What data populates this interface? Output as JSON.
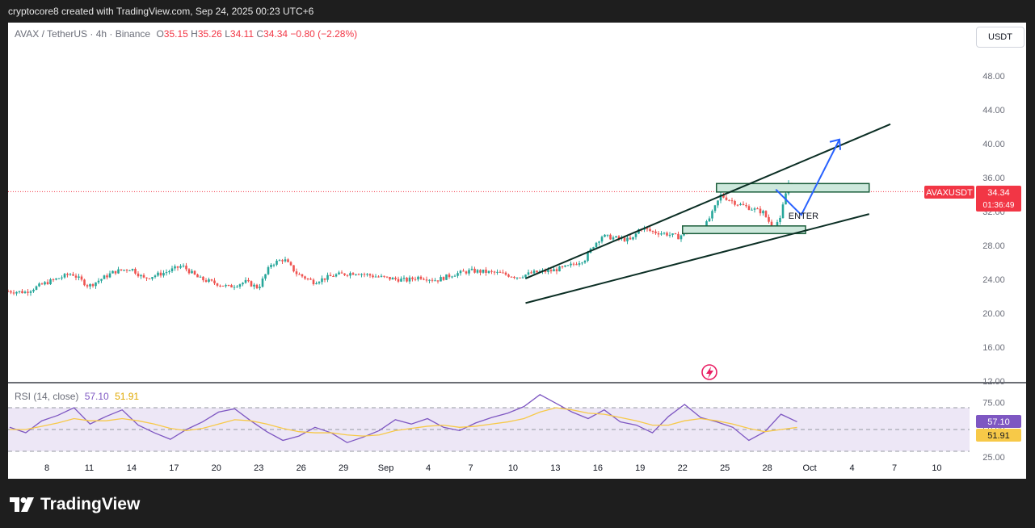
{
  "header": {
    "attribution": "cryptocore8 created with TradingView.com, Sep 24, 2025 00:23 UTC+6"
  },
  "legend": {
    "symbol": "AVAX / TetherUS · 4h · Binance",
    "open_label": "O",
    "open": "35.15",
    "high_label": "H",
    "high": "35.26",
    "low_label": "L",
    "low": "34.11",
    "close_label": "C",
    "close": "34.34",
    "change": "−0.80 (−2.28%)"
  },
  "currency_button": "USDT",
  "price_tag": {
    "symbol": "AVAXUSDT",
    "price": "34.34",
    "countdown": "01:36:49"
  },
  "annotation": {
    "enter": "ENTER"
  },
  "rsi": {
    "title": "RSI (14, close)",
    "value": "57.10",
    "ma": "51.91"
  },
  "branding": {
    "wordmark": "TradingView"
  },
  "colors": {
    "up": "#26a69a",
    "down": "#ef5350",
    "rsi_line": "#7e57c2",
    "rsi_ma": "#f7c948",
    "price_tag": "#f23645",
    "arrow": "#2962ff",
    "zone_fill": "#cde8dc",
    "zone_border": "#1b5e3b",
    "trendline": "#0b2e24"
  },
  "chart_data": [
    {
      "type": "candlestick",
      "title": "AVAX / TetherUS · 4h · Binance",
      "ylabel": "USDT",
      "ylim": [
        12,
        50
      ],
      "y_ticks": [
        "48.00",
        "44.00",
        "40.00",
        "36.00",
        "32.00",
        "28.00",
        "24.00",
        "20.00",
        "16.00",
        "12.00"
      ],
      "x_ticks": [
        "8",
        "11",
        "14",
        "17",
        "20",
        "23",
        "26",
        "29",
        "Sep",
        "4",
        "7",
        "10",
        "13",
        "16",
        "19",
        "22",
        "25",
        "28",
        "Oct",
        "4",
        "7",
        "10"
      ],
      "close_path": [
        [
          0,
          22.6
        ],
        [
          4,
          22.5
        ],
        [
          9,
          23.6
        ],
        [
          15,
          24.7
        ],
        [
          19,
          23.2
        ],
        [
          25,
          24.9
        ],
        [
          29,
          25.3
        ],
        [
          32,
          24.1
        ],
        [
          37,
          24.8
        ],
        [
          41,
          25.6
        ],
        [
          45,
          24.1
        ],
        [
          52,
          23.1
        ],
        [
          56,
          23.7
        ],
        [
          59,
          23.0
        ],
        [
          62,
          25.8
        ],
        [
          65,
          26.4
        ],
        [
          68,
          24.7
        ],
        [
          72,
          23.7
        ],
        [
          77,
          24.5
        ],
        [
          82,
          24.8
        ],
        [
          86,
          24.4
        ],
        [
          90,
          24.1
        ],
        [
          94,
          23.9
        ],
        [
          97,
          24.3
        ],
        [
          101,
          23.9
        ],
        [
          105,
          24.6
        ],
        [
          109,
          25.0
        ],
        [
          112,
          24.9
        ],
        [
          116,
          24.7
        ],
        [
          120,
          24.3
        ],
        [
          124,
          24.8
        ],
        [
          128,
          25.0
        ],
        [
          132,
          25.5
        ],
        [
          136,
          26.4
        ],
        [
          138,
          28.0
        ],
        [
          140,
          29.1
        ],
        [
          144,
          28.8
        ],
        [
          147,
          28.6
        ],
        [
          149,
          30.1
        ],
        [
          152,
          29.6
        ],
        [
          155,
          29.4
        ],
        [
          158,
          29.0
        ],
        [
          161,
          29.9
        ],
        [
          164,
          30.0
        ],
        [
          166,
          31.8
        ],
        [
          168,
          33.9
        ],
        [
          172,
          32.9
        ],
        [
          175,
          32.4
        ],
        [
          178,
          31.9
        ],
        [
          180,
          30.3
        ],
        [
          182,
          31.0
        ],
        [
          183,
          33.5
        ],
        [
          184,
          35.4
        ],
        [
          186,
          34.34
        ]
      ],
      "last_price": 34.34,
      "zones": [
        {
          "from_day": 167,
          "to_day": 203,
          "low": 34.3,
          "high": 35.3
        },
        {
          "from_day": 159,
          "to_day": 188,
          "low": 29.4,
          "high": 30.3
        }
      ],
      "trendlines": [
        {
          "from": [
            122,
            24.1
          ],
          "to": [
            208,
            42.3
          ]
        },
        {
          "from": [
            122,
            21.2
          ],
          "to": [
            203,
            31.7
          ]
        }
      ],
      "projection": [
        [
          181,
          34.6
        ],
        [
          187,
          31.6
        ],
        [
          196,
          40.5
        ]
      ]
    },
    {
      "type": "line",
      "title": "RSI (14, close)",
      "ylim": [
        20,
        85
      ],
      "y_ticks": [
        "75.00",
        "50.00",
        "25.00"
      ],
      "bands": [
        70,
        50,
        30
      ],
      "series": [
        {
          "name": "RSI",
          "values": [
            52,
            47,
            58,
            63,
            70,
            55,
            62,
            68,
            54,
            47,
            41,
            50,
            57,
            66,
            69,
            58,
            48,
            40,
            44,
            52,
            47,
            38,
            43,
            49,
            59,
            55,
            60,
            52,
            49,
            56,
            61,
            65,
            71,
            82,
            74,
            66,
            60,
            68,
            57,
            54,
            47,
            62,
            73,
            61,
            57,
            52,
            40,
            48,
            64,
            57.1
          ]
        },
        {
          "name": "MA",
          "values": [
            50,
            50,
            53,
            56,
            60,
            58,
            58,
            60,
            58,
            55,
            51,
            49,
            51,
            55,
            59,
            58,
            55,
            51,
            48,
            47,
            47,
            45,
            44,
            45,
            49,
            51,
            53,
            54,
            52,
            53,
            55,
            57,
            60,
            66,
            70,
            68,
            65,
            64,
            61,
            58,
            54,
            54,
            58,
            60,
            58,
            55,
            51,
            48,
            50,
            51.91
          ]
        }
      ],
      "last_values": {
        "rsi": 57.1,
        "ma": 51.91
      }
    }
  ]
}
